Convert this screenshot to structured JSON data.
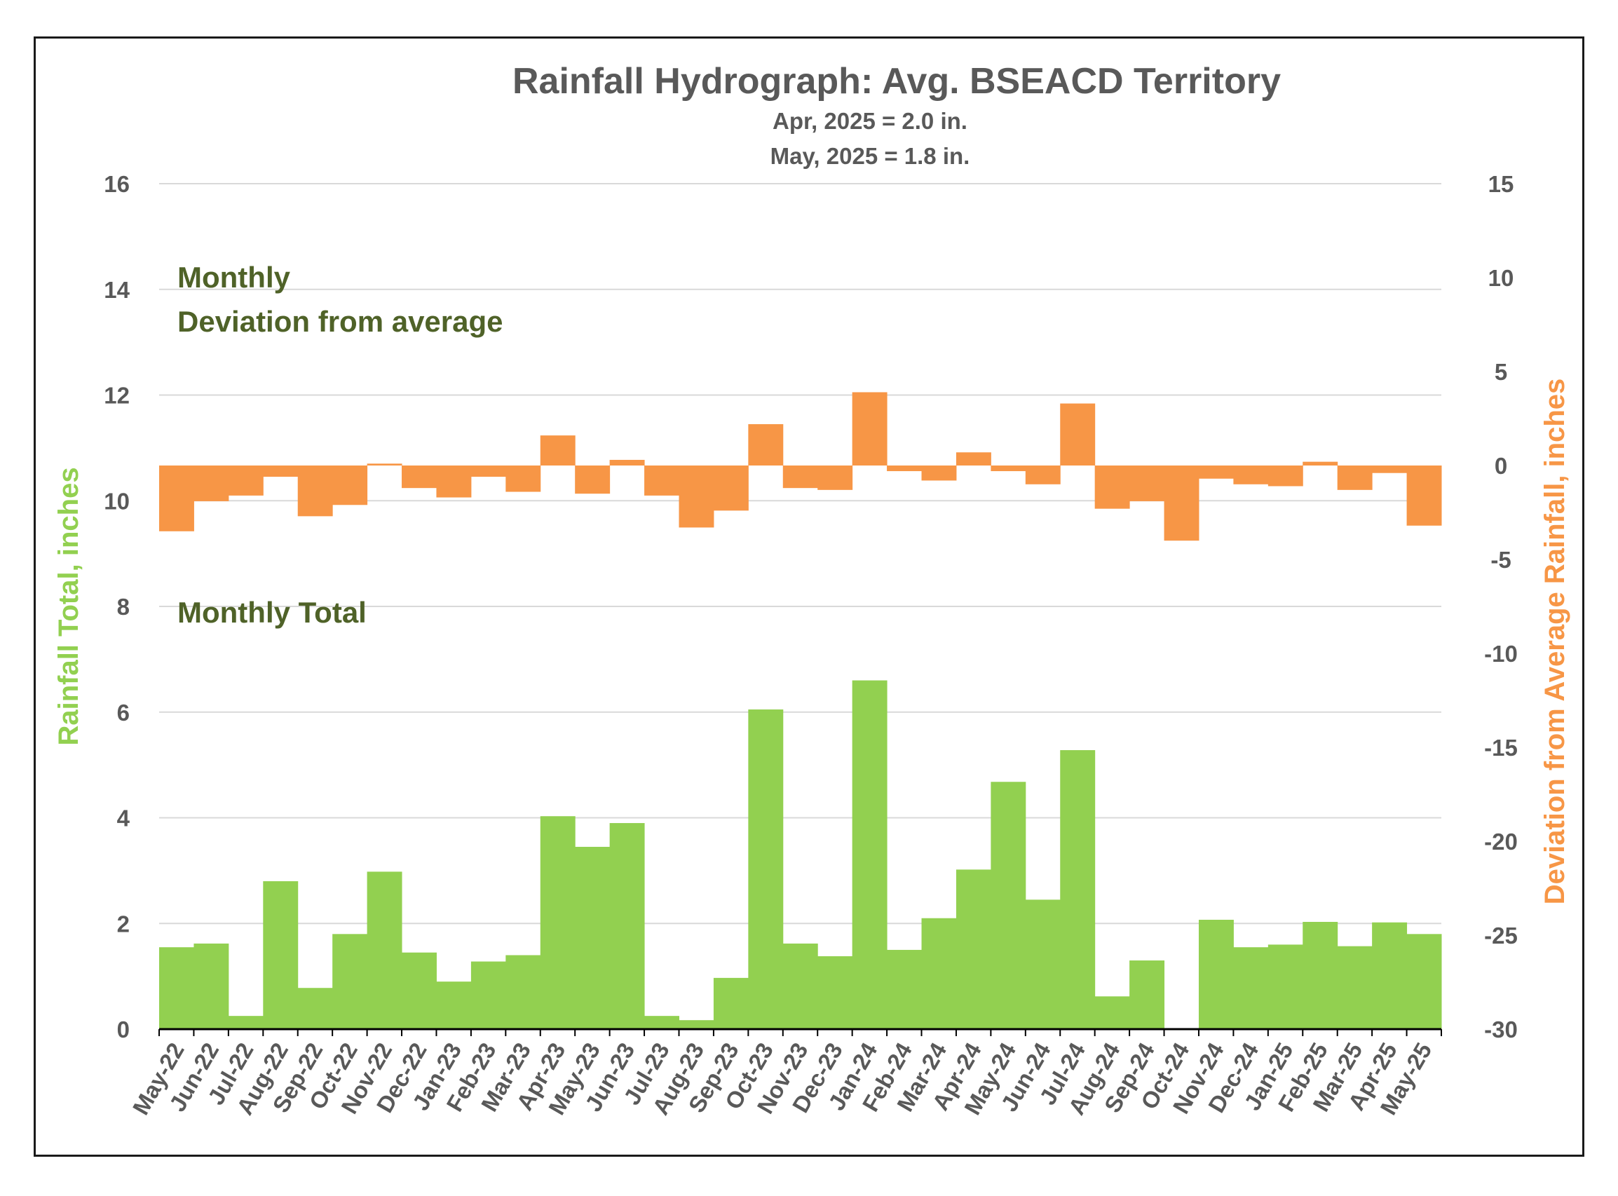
{
  "chart_data": {
    "type": "bar",
    "title": "Rainfall Hydrograph: Avg. BSEACD Territory",
    "subtitle_lines": [
      "Apr, 2025 = 2.0 in.",
      "May, 2025 = 1.8 in."
    ],
    "annotations": {
      "deviation_line1": "Monthly",
      "deviation_line2": "Deviation from average",
      "total": "Monthly Total"
    },
    "ylabel_left": "Rainfall Total, inches",
    "ylabel_right": "Deviation from Average Rainfall, inches",
    "ylim_left": [
      0,
      16
    ],
    "ylim_right": [
      -30,
      15
    ],
    "yticks_left": [
      "0",
      "2",
      "4",
      "6",
      "8",
      "10",
      "12",
      "14",
      "16"
    ],
    "yticks_right": [
      "-30",
      "-25",
      "-20",
      "-15",
      "-10",
      "-5",
      "0",
      "5",
      "10",
      "15"
    ],
    "grid": true,
    "colors": {
      "total": "#92d050",
      "deviation": "#f79646",
      "text": "#595959",
      "annotation": "#4f6228"
    },
    "categories": [
      "May-22",
      "Jun-22",
      "Jul-22",
      "Aug-22",
      "Sep-22",
      "Oct-22",
      "Nov-22",
      "Dec-22",
      "Jan-23",
      "Feb-23",
      "Mar-23",
      "Apr-23",
      "May-23",
      "Jun-23",
      "Jul-23",
      "Aug-23",
      "Sep-23",
      "Oct-23",
      "Nov-23",
      "Dec-23",
      "Jan-24",
      "Feb-24",
      "Mar-24",
      "Apr-24",
      "May-24",
      "Jun-24",
      "Jul-24",
      "Aug-24",
      "Sep-24",
      "Oct-24",
      "Nov-24",
      "Dec-24",
      "Jan-25",
      "Feb-25",
      "Mar-25",
      "Apr-25",
      "May-25"
    ],
    "series": [
      {
        "name": "Monthly Total",
        "axis": "left",
        "values": [
          1.55,
          1.62,
          0.25,
          2.8,
          0.78,
          1.8,
          2.98,
          1.45,
          0.9,
          1.28,
          1.4,
          4.03,
          3.45,
          3.9,
          0.25,
          0.17,
          0.97,
          6.05,
          1.62,
          1.38,
          6.6,
          1.5,
          2.1,
          3.02,
          4.68,
          2.45,
          5.28,
          0.62,
          1.3,
          0.0,
          2.07,
          1.55,
          1.6,
          2.03,
          1.57,
          2.02,
          1.8
        ]
      },
      {
        "name": "Monthly Deviation from average",
        "axis": "right",
        "values": [
          -3.5,
          -1.9,
          -1.6,
          -0.6,
          -2.7,
          -2.1,
          0.1,
          -1.2,
          -1.7,
          -0.6,
          -1.4,
          1.6,
          -1.5,
          0.3,
          -1.6,
          -3.3,
          -2.4,
          2.2,
          -1.2,
          -1.3,
          3.9,
          -0.3,
          -0.8,
          0.7,
          -0.3,
          -1.0,
          3.3,
          -2.3,
          -1.9,
          -4.0,
          -0.7,
          -1.0,
          -1.1,
          0.2,
          -1.3,
          -0.4,
          -3.2
        ]
      }
    ]
  }
}
